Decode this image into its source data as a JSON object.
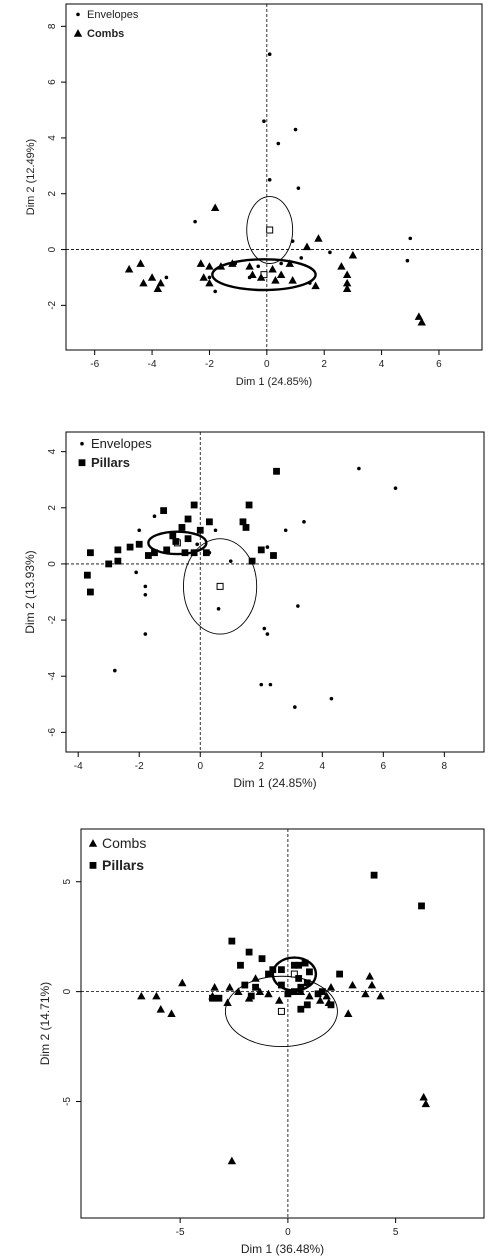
{
  "chart_data": [
    {
      "type": "scatter",
      "xlabel": "Dim 1 (24.85%)",
      "ylabel": "Dim 2 (12.49%)",
      "xlim": [
        -7,
        7.5
      ],
      "ylim": [
        -3.6,
        8.8
      ],
      "xticks": [
        -6,
        -4,
        -2,
        0,
        2,
        4,
        6
      ],
      "yticks": [
        -2,
        0,
        2,
        4,
        6,
        8
      ],
      "legend": [
        {
          "label": "Envelopes",
          "marker": "dot",
          "bold": false
        },
        {
          "label": "Combs",
          "marker": "triangle",
          "bold": true
        }
      ],
      "series": [
        {
          "name": "Envelopes",
          "marker": "dot",
          "points": [
            [
              0.1,
              7.0
            ],
            [
              -0.1,
              4.6
            ],
            [
              1.0,
              4.3
            ],
            [
              0.4,
              3.8
            ],
            [
              0.1,
              2.5
            ],
            [
              1.1,
              2.2
            ],
            [
              -2.5,
              1.0
            ],
            [
              0.9,
              0.3
            ],
            [
              5.0,
              0.4
            ],
            [
              4.9,
              -0.4
            ],
            [
              -3.5,
              -1.0
            ],
            [
              -1.8,
              -1.5
            ],
            [
              -1.1,
              -0.5
            ],
            [
              -0.3,
              -0.6
            ],
            [
              0.5,
              -0.5
            ],
            [
              1.2,
              -0.3
            ],
            [
              2.2,
              -0.1
            ],
            [
              -2.0,
              -1.0
            ],
            [
              1.5,
              -1.2
            ],
            [
              -0.6,
              -1.0
            ]
          ]
        },
        {
          "name": "Combs",
          "marker": "triangle",
          "points": [
            [
              -1.8,
              1.5
            ],
            [
              -4.8,
              -0.7
            ],
            [
              -4.4,
              -0.5
            ],
            [
              -4.0,
              -1.0
            ],
            [
              -4.3,
              -1.2
            ],
            [
              -3.7,
              -1.2
            ],
            [
              -3.8,
              -1.4
            ],
            [
              -2.3,
              -0.5
            ],
            [
              -2.0,
              -0.6
            ],
            [
              -2.2,
              -1.0
            ],
            [
              -1.6,
              -0.6
            ],
            [
              -1.2,
              -0.5
            ],
            [
              -0.6,
              -0.6
            ],
            [
              0.2,
              -0.7
            ],
            [
              0.8,
              -0.5
            ],
            [
              -0.2,
              -1.0
            ],
            [
              0.3,
              -1.1
            ],
            [
              0.5,
              -0.9
            ],
            [
              1.8,
              0.4
            ],
            [
              1.4,
              0.1
            ],
            [
              1.7,
              -1.3
            ],
            [
              2.6,
              -0.6
            ],
            [
              2.8,
              -0.9
            ],
            [
              2.8,
              -1.2
            ],
            [
              2.8,
              -1.4
            ],
            [
              3.0,
              -0.2
            ],
            [
              5.3,
              -2.4
            ],
            [
              5.4,
              -2.6
            ],
            [
              -2.0,
              -1.2
            ],
            [
              -0.5,
              -0.9
            ],
            [
              0.9,
              -1.1
            ]
          ]
        }
      ],
      "centroids": [
        {
          "name": "Envelopes",
          "point": [
            0.1,
            0.7
          ],
          "ellipse": {
            "rx": 0.8,
            "ry": 1.2
          },
          "bold": false
        },
        {
          "name": "Combs",
          "point": [
            -0.1,
            -0.9
          ],
          "ellipse": {
            "rx": 1.8,
            "ry": 0.55
          },
          "bold": true
        }
      ]
    },
    {
      "type": "scatter",
      "xlabel": "Dim 1 (24.85%)",
      "ylabel": "Dim 2 (13.93%)",
      "xlim": [
        -4.4,
        9.3
      ],
      "ylim": [
        -6.7,
        4.7
      ],
      "xticks": [
        -4,
        -2,
        0,
        2,
        4,
        6,
        8
      ],
      "yticks": [
        -6,
        -4,
        -2,
        0,
        2,
        4
      ],
      "legend": [
        {
          "label": "Envelopes",
          "marker": "dot",
          "bold": false
        },
        {
          "label": "Pillars",
          "marker": "square",
          "bold": true
        }
      ],
      "series": [
        {
          "name": "Envelopes",
          "marker": "dot",
          "points": [
            [
              5.2,
              3.4
            ],
            [
              6.4,
              2.7
            ],
            [
              3.4,
              1.5
            ],
            [
              2.8,
              1.2
            ],
            [
              -1.5,
              1.7
            ],
            [
              -2.0,
              1.2
            ],
            [
              2.2,
              0.6
            ],
            [
              0.3,
              0.4
            ],
            [
              -1.8,
              -0.8
            ],
            [
              -1.8,
              -1.1
            ],
            [
              -2.1,
              -0.3
            ],
            [
              -1.8,
              -2.5
            ],
            [
              -2.8,
              -3.8
            ],
            [
              0.6,
              -1.6
            ],
            [
              2.2,
              -2.5
            ],
            [
              2.1,
              -2.3
            ],
            [
              3.2,
              -1.5
            ],
            [
              2.0,
              -4.3
            ],
            [
              2.3,
              -4.3
            ],
            [
              3.1,
              -5.1
            ],
            [
              4.3,
              -4.8
            ],
            [
              -0.1,
              0.7
            ],
            [
              0.5,
              1.2
            ],
            [
              1.0,
              0.1
            ]
          ]
        },
        {
          "name": "Pillars",
          "marker": "square",
          "points": [
            [
              2.5,
              3.3
            ],
            [
              -3.6,
              0.4
            ],
            [
              -3.0,
              0.0
            ],
            [
              -2.7,
              0.5
            ],
            [
              -2.3,
              0.6
            ],
            [
              -2.0,
              0.7
            ],
            [
              -1.7,
              0.3
            ],
            [
              -1.5,
              0.4
            ],
            [
              -3.7,
              -0.4
            ],
            [
              -3.6,
              -1.0
            ],
            [
              -1.1,
              0.5
            ],
            [
              -0.9,
              1.0
            ],
            [
              -0.6,
              1.3
            ],
            [
              -0.4,
              0.9
            ],
            [
              -0.2,
              0.4
            ],
            [
              0.2,
              0.4
            ],
            [
              -0.2,
              2.1
            ],
            [
              0.3,
              1.5
            ],
            [
              1.4,
              1.5
            ],
            [
              1.6,
              2.1
            ],
            [
              1.5,
              1.3
            ],
            [
              2.0,
              0.5
            ],
            [
              2.4,
              0.3
            ],
            [
              -0.4,
              1.6
            ],
            [
              0.0,
              1.2
            ],
            [
              -0.8,
              0.8
            ],
            [
              -1.2,
              1.9
            ],
            [
              -0.5,
              0.4
            ],
            [
              -2.7,
              0.1
            ],
            [
              1.7,
              0.1
            ]
          ]
        }
      ],
      "centroids": [
        {
          "name": "Envelopes",
          "point": [
            0.65,
            -0.8
          ],
          "ellipse": {
            "rx": 1.2,
            "ry": 1.7
          },
          "bold": false
        },
        {
          "name": "Pillars",
          "point": [
            -0.75,
            0.75
          ],
          "ellipse": {
            "rx": 0.95,
            "ry": 0.4
          },
          "bold": true
        }
      ]
    },
    {
      "type": "scatter",
      "xlabel": "Dim 1 (36.48%)",
      "ylabel": "Dim 2 (14.71%)",
      "xlim": [
        -9.6,
        9.1
      ],
      "ylim": [
        -10.3,
        7.4
      ],
      "xticks": [
        -5,
        0,
        5
      ],
      "yticks": [
        -5,
        0,
        5
      ],
      "legend": [
        {
          "label": "Combs",
          "marker": "triangle",
          "bold": false
        },
        {
          "label": "Pillars",
          "marker": "square",
          "bold": true
        }
      ],
      "series": [
        {
          "name": "Combs",
          "marker": "triangle",
          "points": [
            [
              -6.8,
              -0.2
            ],
            [
              -6.1,
              -0.2
            ],
            [
              -5.9,
              -0.8
            ],
            [
              -5.4,
              -1.0
            ],
            [
              -4.9,
              0.4
            ],
            [
              -3.5,
              -0.2
            ],
            [
              -3.4,
              0.2
            ],
            [
              -2.8,
              -0.5
            ],
            [
              -2.7,
              0.2
            ],
            [
              -2.3,
              0.0
            ],
            [
              -1.8,
              -0.3
            ],
            [
              -1.3,
              0.0
            ],
            [
              -0.9,
              -0.1
            ],
            [
              -0.4,
              -0.4
            ],
            [
              1.0,
              -0.2
            ],
            [
              1.5,
              -0.4
            ],
            [
              1.8,
              -0.2
            ],
            [
              1.9,
              -0.5
            ],
            [
              2.0,
              0.2
            ],
            [
              2.8,
              -1.0
            ],
            [
              3.0,
              0.3
            ],
            [
              3.6,
              -0.1
            ],
            [
              3.8,
              0.7
            ],
            [
              3.9,
              0.3
            ],
            [
              4.3,
              -0.2
            ],
            [
              6.3,
              -4.8
            ],
            [
              6.4,
              -5.1
            ],
            [
              -2.6,
              -7.7
            ],
            [
              0.6,
              0.0
            ],
            [
              -1.5,
              0.6
            ]
          ]
        },
        {
          "name": "Pillars",
          "marker": "square",
          "points": [
            [
              4.0,
              5.3
            ],
            [
              6.2,
              3.9
            ],
            [
              -2.6,
              2.3
            ],
            [
              -1.8,
              1.8
            ],
            [
              -1.2,
              1.5
            ],
            [
              -0.7,
              1.0
            ],
            [
              -0.9,
              0.8
            ],
            [
              -2.0,
              0.3
            ],
            [
              -3.2,
              -0.3
            ],
            [
              -3.5,
              -0.3
            ],
            [
              -1.5,
              0.2
            ],
            [
              -0.3,
              1.0
            ],
            [
              0.3,
              1.2
            ],
            [
              0.8,
              1.3
            ],
            [
              0.5,
              1.2
            ],
            [
              1.0,
              0.9
            ],
            [
              0.9,
              0.4
            ],
            [
              0.6,
              0.2
            ],
            [
              0.5,
              0.6
            ],
            [
              0.3,
              0.0
            ],
            [
              0.0,
              -0.1
            ],
            [
              0.9,
              -0.6
            ],
            [
              0.6,
              -0.8
            ],
            [
              1.4,
              -0.1
            ],
            [
              1.6,
              0.0
            ],
            [
              2.4,
              0.8
            ],
            [
              -2.2,
              1.2
            ],
            [
              -1.7,
              -0.2
            ],
            [
              -0.3,
              0.3
            ],
            [
              2.0,
              -0.6
            ]
          ]
        }
      ],
      "centroids": [
        {
          "name": "Combs",
          "point": [
            -0.3,
            -0.9
          ],
          "ellipse": {
            "rx": 2.6,
            "ry": 1.6
          },
          "bold": false
        },
        {
          "name": "Pillars",
          "point": [
            0.3,
            0.8
          ],
          "ellipse": {
            "rx": 1.0,
            "ry": 0.75
          },
          "bold": true
        }
      ]
    }
  ]
}
